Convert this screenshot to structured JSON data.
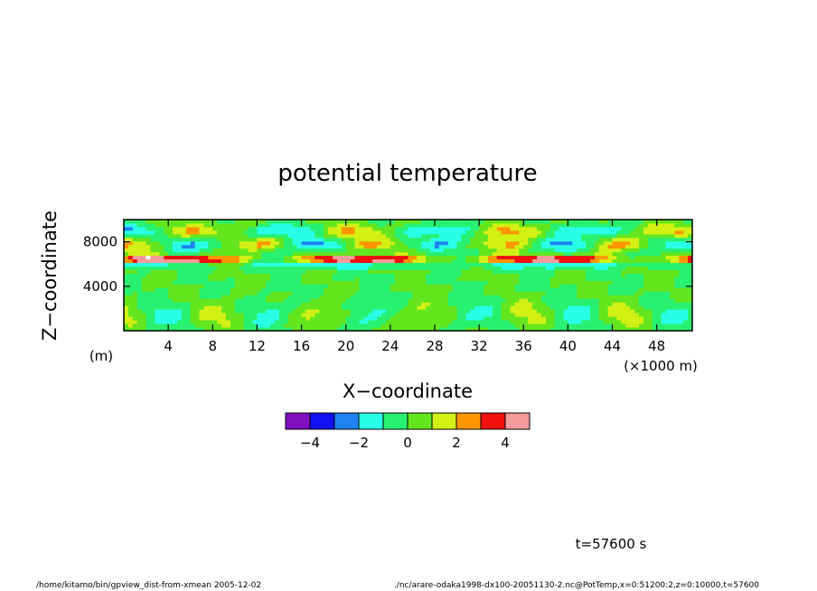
{
  "chart_data": {
    "type": "heatmap",
    "title": "potential temperature",
    "xlabel": "X−coordinate",
    "ylabel": "Z−coordinate",
    "x_unit_label": "(×1000 m)",
    "y_unit_label": "(m)",
    "xlim": [
      0,
      51.2
    ],
    "ylim": [
      0,
      10000
    ],
    "x_ticks": [
      4,
      8,
      12,
      16,
      20,
      24,
      28,
      32,
      36,
      40,
      44,
      48
    ],
    "x_tick_labels": [
      "4",
      "8",
      "12",
      "16",
      "20",
      "24",
      "28",
      "32",
      "36",
      "40",
      "44",
      "48"
    ],
    "y_ticks": [
      4000,
      8000
    ],
    "y_tick_labels": [
      "4000",
      "8000"
    ],
    "colorbar": {
      "bounds": [
        -5,
        -4,
        -3,
        -2,
        -1,
        0,
        1,
        2,
        3,
        4,
        5
      ],
      "colors": [
        "#7f0fbf",
        "#1010f0",
        "#1e82f0",
        "#28ffe6",
        "#28f070",
        "#64e61e",
        "#d2f014",
        "#ff9600",
        "#f01010",
        "#f59b9b"
      ],
      "tick_values": [
        -4,
        -2,
        0,
        2,
        4
      ],
      "tick_labels": [
        "−4",
        "−2",
        "0",
        "2",
        "4"
      ]
    }
  },
  "time_label": "t=57600 s",
  "footer": {
    "left": "/home/kitamo/bin/gpview_dist-from-xmean  2005-12-02",
    "right": "./nc/arare-odaka1998-dx100-20051130-2.nc@PotTemp,x=0:51200:2,z=0:10000,t=57600"
  }
}
